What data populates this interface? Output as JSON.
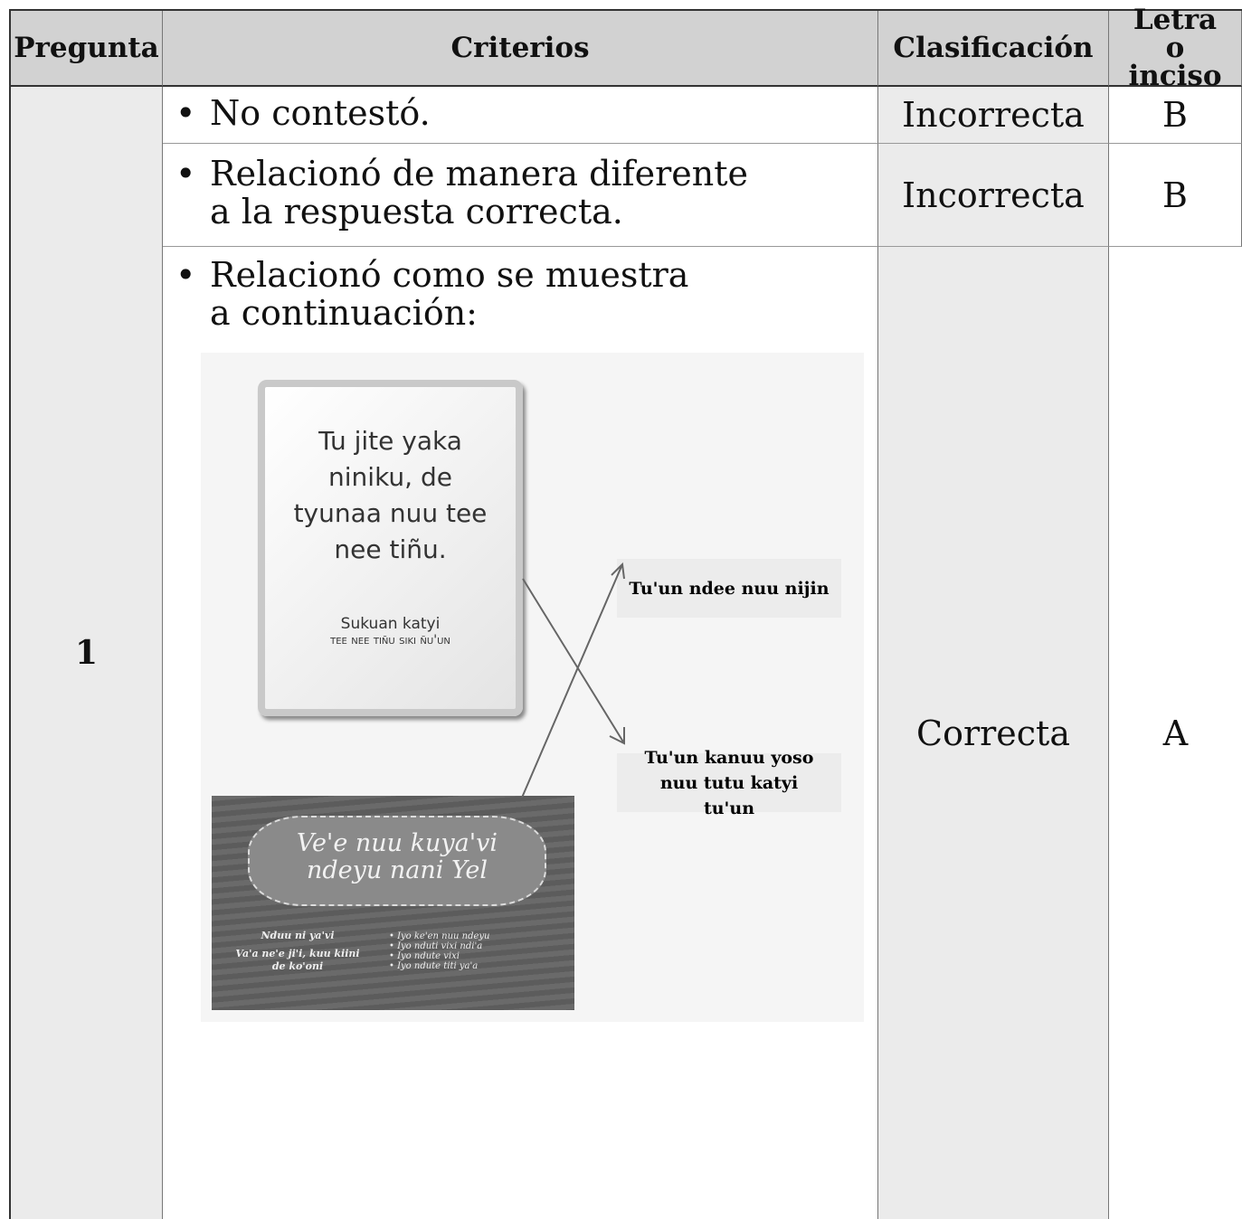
{
  "header": {
    "pregunta": "Pregunta",
    "criterios": "Criterios",
    "clasificacion": "Clasificación",
    "letra": "Letra o inciso"
  },
  "question": "1",
  "rows": [
    {
      "criterio": "No contestó.",
      "clasificacion": "Incorrecta",
      "letra": "B"
    },
    {
      "criterio": "Relacionó de manera diferente a la respuesta correcta.",
      "clasificacion": "Incorrecta",
      "letra": "B"
    },
    {
      "criterio": "Relacionó como se muestra a continuación:",
      "clasificacion": "Correcta",
      "letra": "A"
    }
  ],
  "figure": {
    "poster1": {
      "text": "Tu jite yaka niniku, de tyunaa nuu tee nee tiñu.",
      "source": "Sukuan katyi",
      "author": "Tee nee tiñu siki ñu'un"
    },
    "poster2": {
      "title": "Ve'e nuu kuya'vi ndeyu nani Yel",
      "left": [
        "Nduu ni ya'vi",
        "Va'a ne'e ji'i, kuu kiini de ko'oni"
      ],
      "bullets": [
        "Iyo ke'en nuu ndeyu",
        "Iyo nduti vixi ndi'a",
        "Iyo ndute vixi",
        "Iyo ndute titi ya'a"
      ]
    },
    "labels": [
      "Tu'un ndee nuu nijin",
      "Tu'un kanuu yoso nuu tutu katyi tu'un"
    ]
  }
}
